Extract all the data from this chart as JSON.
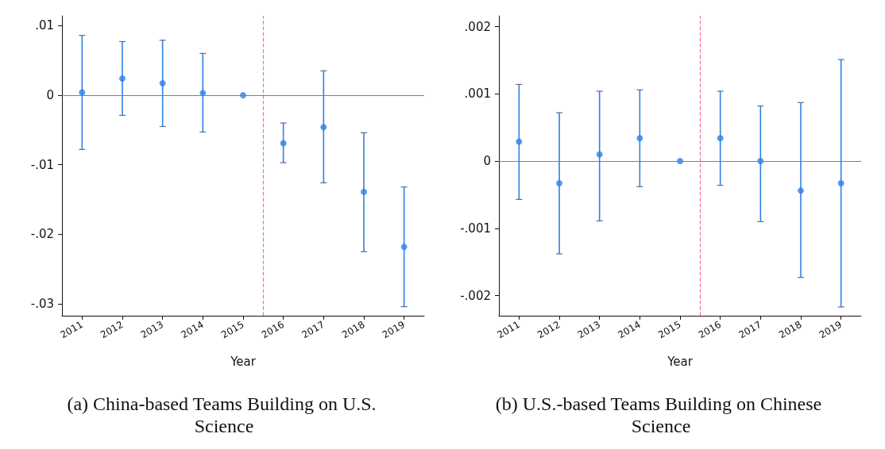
{
  "chart_data": [
    {
      "type": "scatter",
      "title": "(a) China-based Teams Building on U.S. Science",
      "xlabel": "Year",
      "x": [
        2011,
        2012,
        2013,
        2014,
        2015,
        2016,
        2017,
        2018,
        2019
      ],
      "series": [
        {
          "color": "#2f80e8",
          "values": [
            0.0004,
            0.0024,
            0.0017,
            0.0003,
            0,
            -0.0069,
            -0.0046,
            -0.0139,
            -0.0218
          ],
          "errors": [
            [
              -0.0078,
              0.0086
            ],
            [
              -0.0029,
              0.0077
            ],
            [
              -0.0045,
              0.0079
            ],
            [
              -0.0053,
              0.006
            ],
            null,
            [
              -0.0097,
              -0.004
            ],
            [
              -0.0126,
              0.0035
            ],
            [
              -0.0225,
              -0.0054
            ],
            [
              -0.0304,
              -0.0132
            ]
          ]
        }
      ],
      "xlim": [
        2010.5,
        2019.5
      ],
      "xticks": [
        2011,
        2012,
        2013,
        2014,
        2015,
        2016,
        2017,
        2018,
        2019
      ],
      "ylim": [
        -0.0317,
        0.0114
      ],
      "yticks": [
        {
          "value": -0.03,
          "label": "-.03"
        },
        {
          "value": -0.02,
          "label": "-.02"
        },
        {
          "value": -0.01,
          "label": "-.01"
        },
        0,
        {
          "value": 0.01,
          "label": ".01"
        }
      ],
      "ref_lines": [
        {
          "axis": "x",
          "value": 2015.5,
          "color": "#ff6f8a",
          "line_style": "dashed"
        },
        {
          "axis": "y",
          "value": 0,
          "color": "#808080",
          "line_style": "solid"
        }
      ],
      "grid": false,
      "marker": "circle"
    },
    {
      "type": "scatter",
      "title": "(b) U.S.-based Teams Building on Chinese Science",
      "xlabel": "Year",
      "x": [
        2011,
        2012,
        2013,
        2014,
        2015,
        2016,
        2017,
        2018,
        2019
      ],
      "series": [
        {
          "color": "#2f80e8",
          "values": [
            0.00029,
            -0.00033,
            0.0001,
            0.00034,
            0,
            0.00034,
            0,
            -0.00044,
            -0.00033
          ],
          "errors": [
            [
              -0.00057,
              0.00114
            ],
            [
              -0.00138,
              0.00072
            ],
            [
              -0.00089,
              0.00104
            ],
            [
              -0.00038,
              0.00106
            ],
            null,
            [
              -0.00036,
              0.00104
            ],
            [
              -0.0009,
              0.00082
            ],
            [
              -0.00173,
              0.00087
            ],
            [
              -0.00217,
              0.00151
            ]
          ]
        }
      ],
      "xlim": [
        2010.5,
        2019.5
      ],
      "xticks": [
        2011,
        2012,
        2013,
        2014,
        2015,
        2016,
        2017,
        2018,
        2019
      ],
      "ylim": [
        -0.0023,
        0.00216
      ],
      "yticks": [
        {
          "value": -0.002,
          "label": "-.002"
        },
        {
          "value": -0.001,
          "label": "-.001"
        },
        0,
        {
          "value": 0.001,
          "label": ".001"
        },
        {
          "value": 0.002,
          "label": ".002"
        }
      ],
      "ref_lines": [
        {
          "axis": "x",
          "value": 2015.5,
          "color": "#ff6f8a",
          "line_style": "dashed"
        },
        {
          "axis": "y",
          "value": 0,
          "color": "#808080",
          "line_style": "solid"
        }
      ],
      "grid": false,
      "marker": "circle"
    }
  ]
}
